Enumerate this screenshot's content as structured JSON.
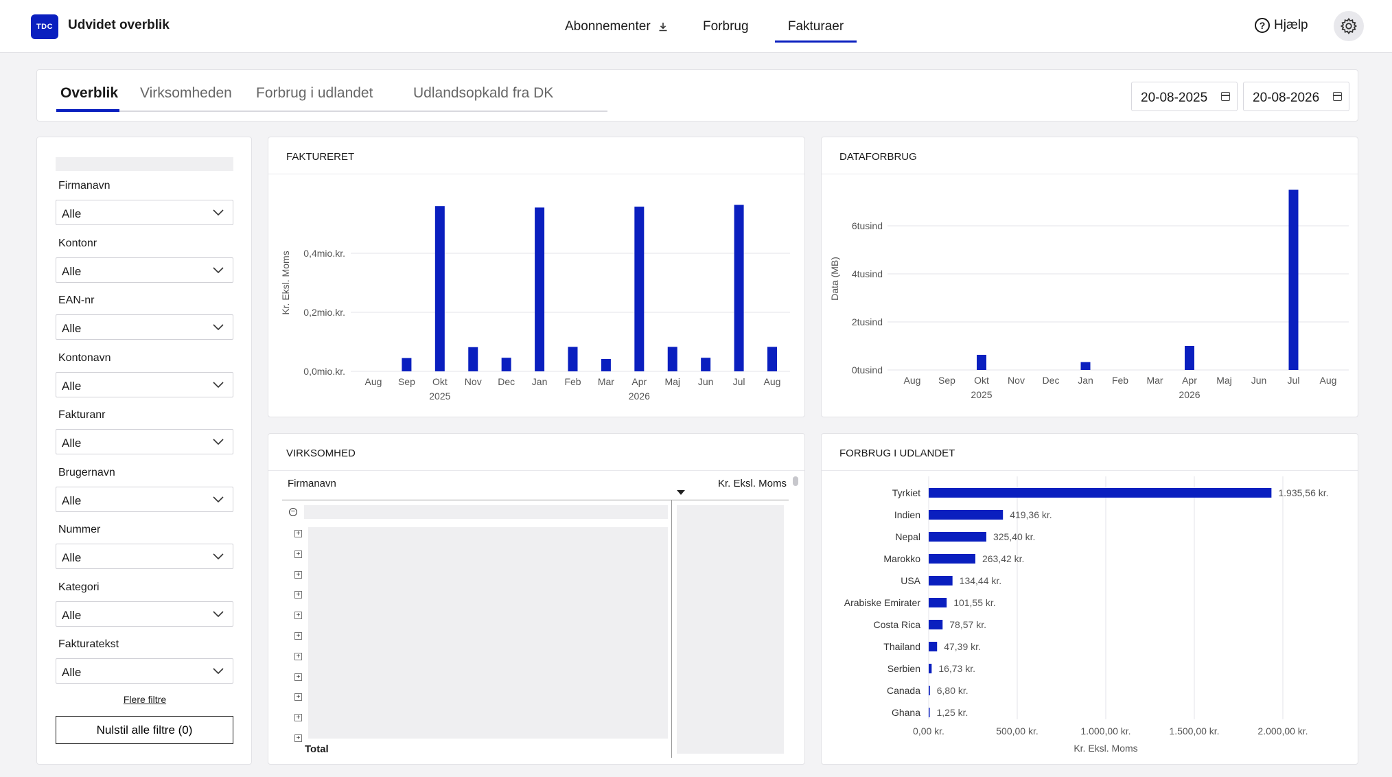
{
  "header": {
    "logo_text": "TDC",
    "app_title": "Udvidet overblik",
    "nav": [
      {
        "label": "Abonnementer",
        "active": false
      },
      {
        "label": "Forbrug",
        "active": false
      },
      {
        "label": "Fakturaer",
        "active": true
      }
    ],
    "help_label": "Hjælp",
    "brand_color": "#0a1fbf"
  },
  "tabs": {
    "items": [
      {
        "label": "Overblik",
        "active": true
      },
      {
        "label": "Virksomheden",
        "active": false
      },
      {
        "label": "Forbrug i udlandet",
        "active": false
      },
      {
        "label": "Udlandsopkald fra DK",
        "active": false
      }
    ],
    "date_from": "20-08-2025",
    "date_to": "20-08-2026"
  },
  "filters": {
    "fields": [
      {
        "label": "Firmanavn",
        "value": "Alle"
      },
      {
        "label": "Kontonr",
        "value": "Alle"
      },
      {
        "label": "EAN-nr",
        "value": "Alle"
      },
      {
        "label": "Kontonavn",
        "value": "Alle"
      },
      {
        "label": "Fakturanr",
        "value": "Alle"
      },
      {
        "label": "Brugernavn",
        "value": "Alle"
      },
      {
        "label": "Nummer",
        "value": "Alle"
      },
      {
        "label": "Kategori",
        "value": "Alle"
      },
      {
        "label": "Fakturatekst",
        "value": "Alle"
      }
    ],
    "more_label": "Flere filtre",
    "reset_label": "Nulstil alle filtre (0)"
  },
  "cards": {
    "faktureret_title": "FAKTURERET",
    "dataforbrug_title": "DATAFORBRUG",
    "virksomhed_title": "VIRKSOMHED",
    "udland_title": "FORBRUG I UDLANDET"
  },
  "virksomhed_table": {
    "col_firmanavn": "Firmanavn",
    "col_amount": "Kr. Eksl. Moms",
    "total_label": "Total"
  },
  "chart_data": [
    {
      "type": "bar",
      "title": "FAKTURERET",
      "ylabel": "Kr. Eksl. Moms",
      "categories": [
        "Aug",
        "Sep",
        "Okt",
        "Nov",
        "Dec",
        "Jan",
        "Feb",
        "Mar",
        "Apr",
        "Maj",
        "Jun",
        "Jul",
        "Aug"
      ],
      "year_labels": [
        {
          "label": "2025",
          "at": "Okt"
        },
        {
          "label": "2026",
          "at": "Apr"
        }
      ],
      "values": [
        0,
        0.045,
        0.56,
        0.082,
        0.046,
        0.555,
        0.083,
        0.042,
        0.558,
        0.083,
        0.046,
        0.564,
        0.083
      ],
      "unit": "mio.kr.",
      "yticks": [
        "0,0mio.kr.",
        "0,2mio.kr.",
        "0,4mio.kr."
      ],
      "ylim": [
        0,
        0.6
      ],
      "color": "#0a1fbf"
    },
    {
      "type": "bar",
      "title": "DATAFORBRUG",
      "ylabel": "Data (MB)",
      "categories": [
        "Aug",
        "Sep",
        "Okt",
        "Nov",
        "Dec",
        "Jan",
        "Feb",
        "Mar",
        "Apr",
        "Maj",
        "Jun",
        "Jul",
        "Aug"
      ],
      "year_labels": [
        {
          "label": "2025",
          "at": "Okt"
        },
        {
          "label": "2026",
          "at": "Apr"
        }
      ],
      "values": [
        0,
        0,
        630,
        0,
        0,
        330,
        0,
        0,
        1000,
        0,
        0,
        7500,
        0
      ],
      "yticks": [
        "0tusind",
        "2tusind",
        "4tusind",
        "6tusind"
      ],
      "ylim": [
        0,
        7600
      ],
      "color": "#0a1fbf"
    },
    {
      "type": "bar",
      "orientation": "horizontal",
      "title": "FORBRUG I UDLANDET",
      "xlabel": "Kr. Eksl. Moms",
      "categories": [
        "Tyrkiet",
        "Indien",
        "Nepal",
        "Marokko",
        "USA",
        "Arabiske Emirater",
        "Costa Rica",
        "Thailand",
        "Serbien",
        "Canada",
        "Ghana"
      ],
      "values": [
        1935.56,
        419.36,
        325.4,
        263.42,
        134.44,
        101.55,
        78.57,
        47.39,
        16.73,
        6.8,
        1.25
      ],
      "value_labels": [
        "1.935,56 kr.",
        "419,36 kr.",
        "325,40 kr.",
        "263,42 kr.",
        "134,44 kr.",
        "101,55 kr.",
        "78,57 kr.",
        "47,39 kr.",
        "16,73 kr.",
        "6,80 kr.",
        "1,25 kr."
      ],
      "xticks": [
        "0,00 kr.",
        "500,00 kr.",
        "1.000,00 kr.",
        "1.500,00 kr.",
        "2.000,00 kr."
      ],
      "xlim": [
        0,
        2000
      ],
      "color": "#0a1fbf"
    }
  ]
}
